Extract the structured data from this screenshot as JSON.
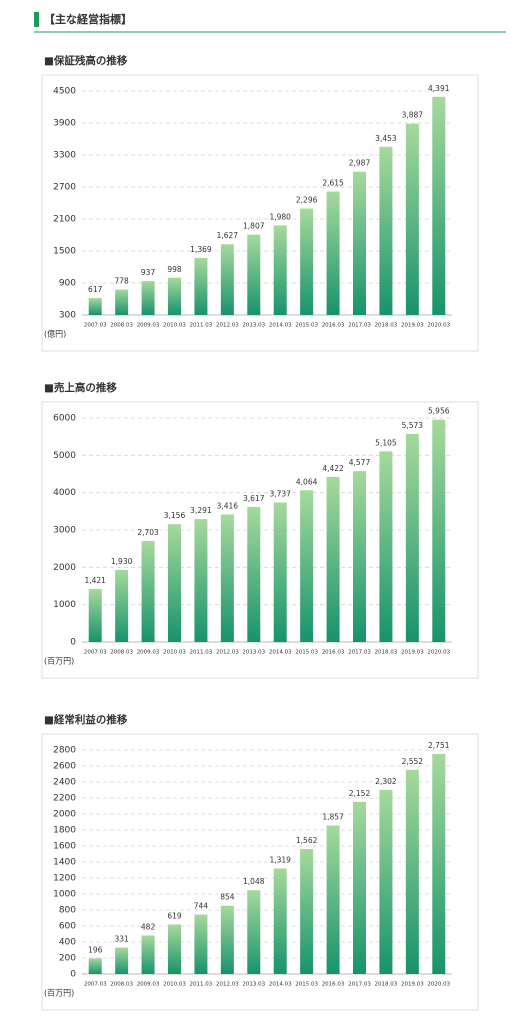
{
  "page_title": "【主な経営指標】",
  "chart_data": [
    {
      "type": "bar",
      "title": "■保証残高の推移",
      "unit_label": "(億円)",
      "categories": [
        "2007.03",
        "2008.03",
        "2009.03",
        "2010.03",
        "2011.03",
        "2012.03",
        "2013.03",
        "2014.03",
        "2015.03",
        "2016.03",
        "2017.03",
        "2018.03",
        "2019.03",
        "2020.03"
      ],
      "values": [
        617,
        778,
        937,
        998,
        1369,
        1627,
        1807,
        1980,
        2296,
        2615,
        2987,
        3453,
        3887,
        4391
      ],
      "value_labels": [
        "617",
        "778",
        "937",
        "998",
        "1,369",
        "1,627",
        "1,807",
        "1,980",
        "2,296",
        "2,615",
        "2,987",
        "3,453",
        "3,887",
        "4,391"
      ],
      "color": "#17936b",
      "ylim": [
        300,
        4500
      ],
      "yticks": [
        300,
        900,
        1500,
        2100,
        2700,
        3300,
        3900,
        4500
      ],
      "grid": true
    },
    {
      "type": "bar",
      "title": "■売上高の推移",
      "unit_label": "(百万円)",
      "categories": [
        "2007.03",
        "2008.03",
        "2009.03",
        "2010.03",
        "2011.03",
        "2012.03",
        "2013.03",
        "2014.03",
        "2015.03",
        "2016.03",
        "2017.03",
        "2018.03",
        "2019.03",
        "2020.03"
      ],
      "values": [
        1421,
        1930,
        2703,
        3156,
        3291,
        3416,
        3617,
        3737,
        4064,
        4422,
        4577,
        5105,
        5573,
        5956
      ],
      "value_labels": [
        "1,421",
        "1,930",
        "2,703",
        "3,156",
        "3,291",
        "3,416",
        "3,617",
        "3,737",
        "4,064",
        "4,422",
        "4,577",
        "5,105",
        "5,573",
        "5,956"
      ],
      "color": "#17936b",
      "ylim": [
        0,
        6000
      ],
      "yticks": [
        0,
        1000,
        2000,
        3000,
        4000,
        5000,
        6000
      ],
      "grid": true
    },
    {
      "type": "bar",
      "title": "■経常利益の推移",
      "unit_label": "(百万円)",
      "categories": [
        "2007.03",
        "2008.03",
        "2009.03",
        "2010.03",
        "2011.03",
        "2012.03",
        "2013.03",
        "2014.03",
        "2015.03",
        "2016.03",
        "2017.03",
        "2018.03",
        "2019.03",
        "2020.03"
      ],
      "values": [
        196,
        331,
        482,
        619,
        744,
        854,
        1048,
        1319,
        1562,
        1857,
        2152,
        2302,
        2552,
        2751
      ],
      "value_labels": [
        "196",
        "331",
        "482",
        "619",
        "744",
        "854",
        "1,048",
        "1,319",
        "1,562",
        "1,857",
        "2,152",
        "2,302",
        "2,552",
        "2,751"
      ],
      "color": "#17936b",
      "ylim": [
        0,
        2800
      ],
      "yticks": [
        0,
        200,
        400,
        600,
        800,
        1000,
        1200,
        1400,
        1600,
        1800,
        2000,
        2200,
        2400,
        2600,
        2800
      ],
      "grid": true
    }
  ]
}
